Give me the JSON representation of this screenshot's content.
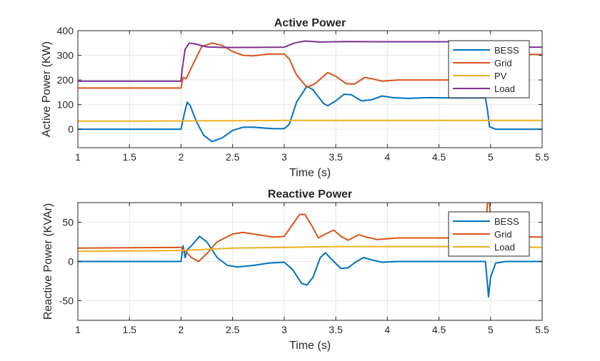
{
  "chart_data": [
    {
      "type": "line",
      "title": "Active Power",
      "xlabel": "Time (s)",
      "ylabel": "Active Power (KW)",
      "xlim": [
        1,
        5.5
      ],
      "ylim": [
        -75,
        400
      ],
      "xticks": [
        1,
        1.5,
        2,
        2.5,
        3,
        3.5,
        4,
        4.5,
        5,
        5.5
      ],
      "xtick_labels": [
        "1",
        "1.5",
        "2",
        "2.5",
        "3",
        "3.5",
        "4",
        "4.5",
        "5",
        "5.5"
      ],
      "yticks": [
        0,
        100,
        200,
        300,
        400
      ],
      "ytick_labels": [
        "0",
        "100",
        "200",
        "300",
        "400"
      ],
      "grid": true,
      "legend_position": "top-right",
      "series": [
        {
          "name": "BESS",
          "color": "#0072BD",
          "points": [
            [
              1,
              0
            ],
            [
              2,
              0
            ],
            [
              2.03,
              60
            ],
            [
              2.06,
              110
            ],
            [
              2.09,
              95
            ],
            [
              2.15,
              30
            ],
            [
              2.22,
              -25
            ],
            [
              2.3,
              -50
            ],
            [
              2.4,
              -35
            ],
            [
              2.5,
              -5
            ],
            [
              2.6,
              8
            ],
            [
              2.7,
              8
            ],
            [
              2.8,
              5
            ],
            [
              2.9,
              2
            ],
            [
              3,
              2
            ],
            [
              3.05,
              20
            ],
            [
              3.12,
              110
            ],
            [
              3.22,
              175
            ],
            [
              3.28,
              160
            ],
            [
              3.38,
              105
            ],
            [
              3.42,
              95
            ],
            [
              3.5,
              115
            ],
            [
              3.58,
              142
            ],
            [
              3.65,
              140
            ],
            [
              3.75,
              115
            ],
            [
              3.85,
              120
            ],
            [
              3.95,
              135
            ],
            [
              4.05,
              128
            ],
            [
              4.2,
              125
            ],
            [
              4.4,
              128
            ],
            [
              4.6,
              127
            ],
            [
              4.95,
              127
            ],
            [
              4.97,
              80
            ],
            [
              4.99,
              10
            ],
            [
              5.05,
              0
            ],
            [
              5.5,
              0
            ]
          ]
        },
        {
          "name": "Grid",
          "color": "#D95319",
          "points": [
            [
              1,
              167
            ],
            [
              2,
              167
            ],
            [
              2.02,
              210
            ],
            [
              2.05,
              205
            ],
            [
              2.1,
              250
            ],
            [
              2.2,
              335
            ],
            [
              2.3,
              350
            ],
            [
              2.4,
              340
            ],
            [
              2.5,
              315
            ],
            [
              2.6,
              300
            ],
            [
              2.7,
              298
            ],
            [
              2.85,
              305
            ],
            [
              3,
              305
            ],
            [
              3.05,
              285
            ],
            [
              3.12,
              220
            ],
            [
              3.22,
              170
            ],
            [
              3.3,
              185
            ],
            [
              3.42,
              230
            ],
            [
              3.5,
              215
            ],
            [
              3.6,
              185
            ],
            [
              3.68,
              183
            ],
            [
              3.78,
              210
            ],
            [
              3.85,
              205
            ],
            [
              3.95,
              195
            ],
            [
              4.1,
              200
            ],
            [
              4.3,
              200
            ],
            [
              4.95,
              200
            ],
            [
              4.97,
              300
            ],
            [
              5.0,
              305
            ],
            [
              5.5,
              303
            ]
          ]
        },
        {
          "name": "PV",
          "color": "#EDB120",
          "points": [
            [
              1,
              33
            ],
            [
              1.5,
              33
            ],
            [
              2,
              33.5
            ],
            [
              2.5,
              34.5
            ],
            [
              3,
              35.5
            ],
            [
              3.5,
              36
            ],
            [
              4,
              36
            ],
            [
              4.5,
              36
            ],
            [
              5,
              36
            ],
            [
              5.5,
              36
            ]
          ]
        },
        {
          "name": "Load",
          "color": "#7E2F8E",
          "points": [
            [
              1,
              195
            ],
            [
              2,
              195
            ],
            [
              2.01,
              240
            ],
            [
              2.04,
              325
            ],
            [
              2.08,
              350
            ],
            [
              2.15,
              345
            ],
            [
              2.25,
              334
            ],
            [
              2.4,
              332
            ],
            [
              2.6,
              332
            ],
            [
              3,
              333
            ],
            [
              3.1,
              350
            ],
            [
              3.2,
              358
            ],
            [
              3.35,
              354
            ],
            [
              3.6,
              356
            ],
            [
              4,
              355
            ],
            [
              4.5,
              355
            ],
            [
              4.98,
              355
            ],
            [
              5.02,
              333
            ],
            [
              5.5,
              333
            ]
          ]
        }
      ]
    },
    {
      "type": "line",
      "title": "Reactive Power",
      "xlabel": "Time (s)",
      "ylabel": "Reactive Power (KVAr)",
      "xlim": [
        1,
        5.5
      ],
      "ylim": [
        -75,
        75
      ],
      "xticks": [
        1,
        1.5,
        2,
        2.5,
        3,
        3.5,
        4,
        4.5,
        5,
        5.5
      ],
      "xtick_labels": [
        "1",
        "1.5",
        "2",
        "2.5",
        "3",
        "3.5",
        "4",
        "4.5",
        "5",
        "5.5"
      ],
      "yticks": [
        -50,
        0,
        50
      ],
      "ytick_labels": [
        "-50",
        "0",
        "50"
      ],
      "grid": true,
      "legend_position": "top-right",
      "series": [
        {
          "name": "BESS",
          "color": "#0072BD",
          "points": [
            [
              1,
              0
            ],
            [
              2,
              0
            ],
            [
              2.02,
              20
            ],
            [
              2.04,
              5
            ],
            [
              2.06,
              15
            ],
            [
              2.1,
              20
            ],
            [
              2.18,
              32
            ],
            [
              2.25,
              25
            ],
            [
              2.35,
              5
            ],
            [
              2.45,
              -5
            ],
            [
              2.55,
              -7
            ],
            [
              2.7,
              -5
            ],
            [
              2.85,
              -2
            ],
            [
              3,
              -1
            ],
            [
              3.08,
              -10
            ],
            [
              3.17,
              -28
            ],
            [
              3.22,
              -30
            ],
            [
              3.28,
              -20
            ],
            [
              3.35,
              5
            ],
            [
              3.4,
              11
            ],
            [
              3.48,
              0
            ],
            [
              3.55,
              -9
            ],
            [
              3.62,
              -8
            ],
            [
              3.7,
              0
            ],
            [
              3.77,
              5
            ],
            [
              3.85,
              2
            ],
            [
              3.95,
              -1
            ],
            [
              4.1,
              0
            ],
            [
              4.4,
              0
            ],
            [
              4.95,
              0
            ],
            [
              4.98,
              -45
            ],
            [
              5.0,
              -20
            ],
            [
              5.05,
              -2
            ],
            [
              5.15,
              0
            ],
            [
              5.5,
              0
            ]
          ]
        },
        {
          "name": "Grid",
          "color": "#D95319",
          "points": [
            [
              1,
              17
            ],
            [
              2,
              18
            ],
            [
              2.05,
              12
            ],
            [
              2.1,
              5
            ],
            [
              2.17,
              0
            ],
            [
              2.25,
              10
            ],
            [
              2.35,
              25
            ],
            [
              2.5,
              35
            ],
            [
              2.6,
              37
            ],
            [
              2.75,
              34
            ],
            [
              2.9,
              31
            ],
            [
              3,
              32
            ],
            [
              3.07,
              45
            ],
            [
              3.15,
              60
            ],
            [
              3.2,
              60
            ],
            [
              3.27,
              45
            ],
            [
              3.33,
              30
            ],
            [
              3.4,
              35
            ],
            [
              3.48,
              40
            ],
            [
              3.55,
              32
            ],
            [
              3.62,
              27
            ],
            [
              3.72,
              34
            ],
            [
              3.8,
              31
            ],
            [
              3.9,
              28
            ],
            [
              4.1,
              30
            ],
            [
              4.4,
              30
            ],
            [
              4.95,
              30
            ],
            [
              4.97,
              75
            ],
            [
              4.99,
              75
            ],
            [
              5.01,
              32
            ],
            [
              5.5,
              31
            ]
          ]
        },
        {
          "name": "Load",
          "color": "#EDB120",
          "points": [
            [
              1,
              13
            ],
            [
              2,
              14
            ],
            [
              2.5,
              17
            ],
            [
              3,
              18
            ],
            [
              3.5,
              19
            ],
            [
              4,
              19
            ],
            [
              4.5,
              19
            ],
            [
              5,
              19
            ],
            [
              5.5,
              18
            ]
          ]
        }
      ]
    }
  ]
}
